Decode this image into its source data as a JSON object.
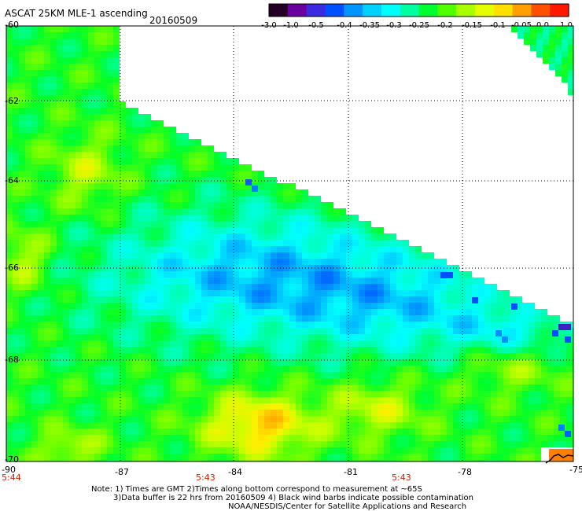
{
  "header": {
    "title": "ASCAT 25KM MLE-1 ascending",
    "date": "20160509"
  },
  "colorbar": {
    "colors": [
      "#240024",
      "#6a00a0",
      "#3a2ae0",
      "#0050ff",
      "#0096ff",
      "#00d2ff",
      "#00ffff",
      "#00ffa0",
      "#00ff30",
      "#50ff00",
      "#a8ff00",
      "#e6ff00",
      "#ffe000",
      "#ffa000",
      "#ff5000",
      "#ff1800"
    ],
    "tick_labels": [
      "-3.0",
      "-1.0",
      "-0.5",
      "-0.4",
      "-0.35",
      "-0.3",
      "-0.25",
      "-0.2",
      "-0.15",
      "-0.1",
      "-0.05",
      "0.0",
      "1.0"
    ]
  },
  "map": {
    "lat_labels": [
      "-60",
      "-62",
      "-64",
      "-66",
      "-68",
      "-70"
    ],
    "lon_labels": [
      "-90",
      "-87",
      "-84",
      "-81",
      "-78",
      "-75"
    ],
    "time_labels": [
      "5:44",
      "5:43",
      "5:43"
    ]
  },
  "notes": [
    "Note: 1) Times are GMT 2)Times along bottom correspond to measurement at ~65S",
    "3)Data buffer is 22 hrs from 20160509 4) Black wind barbs indicate possible contamination",
    "NOAA/NESDIS/Center for Satellite Applications and Research"
  ]
}
